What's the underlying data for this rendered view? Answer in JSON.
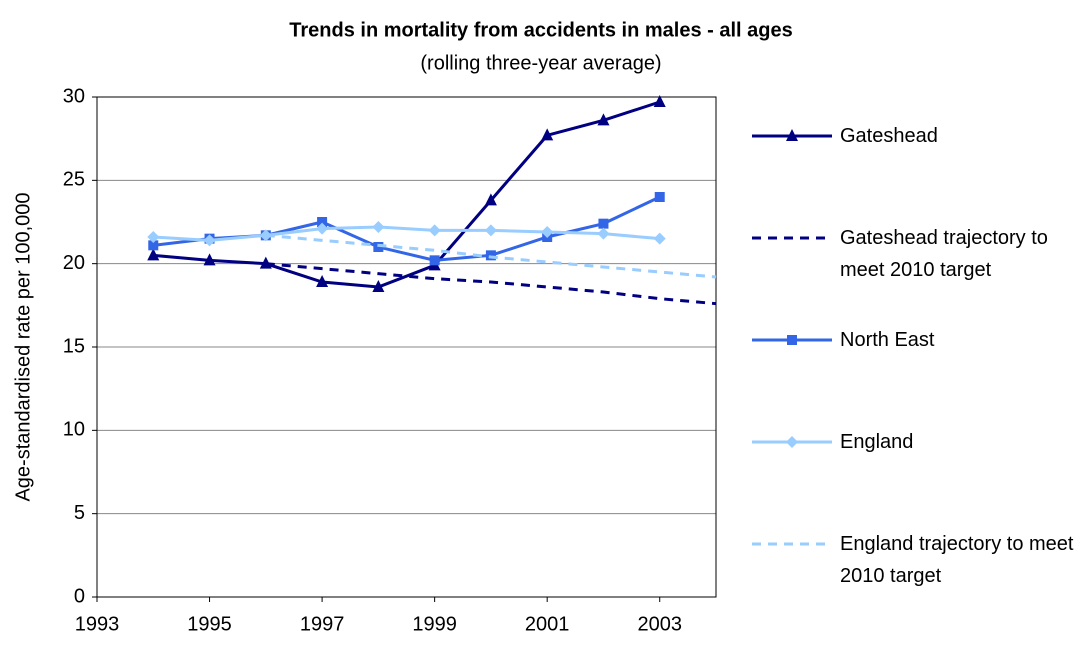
{
  "chart_data": {
    "type": "line",
    "title": "Trends in mortality from accidents in males - all ages",
    "subtitle": "(rolling three-year average)",
    "y_label": "Age-standardised rate per 100,000",
    "x": [
      1994,
      1995,
      1996,
      1997,
      1998,
      1999,
      2000,
      2001,
      2002,
      2003,
      2004
    ],
    "series": [
      {
        "name": "Gateshead",
        "color": "#000080",
        "marker": "triangle",
        "dashed": false,
        "values": [
          20.5,
          20.2,
          20.0,
          18.9,
          18.6,
          19.9,
          23.8,
          27.7,
          28.6,
          29.7,
          null
        ]
      },
      {
        "name": "Gateshead trajectory to meet 2010 target",
        "color": "#000080",
        "marker": "none",
        "dashed": true,
        "values": [
          null,
          null,
          20.0,
          19.7,
          19.4,
          19.1,
          18.9,
          18.6,
          18.3,
          17.9,
          17.6
        ]
      },
      {
        "name": "North East",
        "color": "#3366e6",
        "marker": "square",
        "dashed": false,
        "values": [
          21.1,
          21.5,
          21.7,
          22.5,
          21.0,
          20.2,
          20.5,
          21.6,
          22.4,
          24.0,
          null
        ]
      },
      {
        "name": "England",
        "color": "#99ccff",
        "marker": "diamond",
        "dashed": false,
        "values": [
          21.6,
          21.4,
          21.7,
          22.1,
          22.2,
          22.0,
          22.0,
          21.9,
          21.8,
          21.5,
          null
        ]
      },
      {
        "name": "England trajectory to meet 2010 target",
        "color": "#99ccff",
        "marker": "none",
        "dashed": true,
        "values": [
          null,
          null,
          21.7,
          21.4,
          21.1,
          20.8,
          20.4,
          20.1,
          19.8,
          19.5,
          19.2
        ]
      }
    ],
    "xlim": [
      1993,
      2004
    ],
    "xticks": [
      1993,
      1995,
      1997,
      1999,
      2001,
      2003
    ],
    "ylim": [
      0,
      30
    ],
    "yticks": [
      0,
      5,
      10,
      15,
      20,
      25,
      30
    ],
    "grid": true,
    "legend": "right"
  }
}
